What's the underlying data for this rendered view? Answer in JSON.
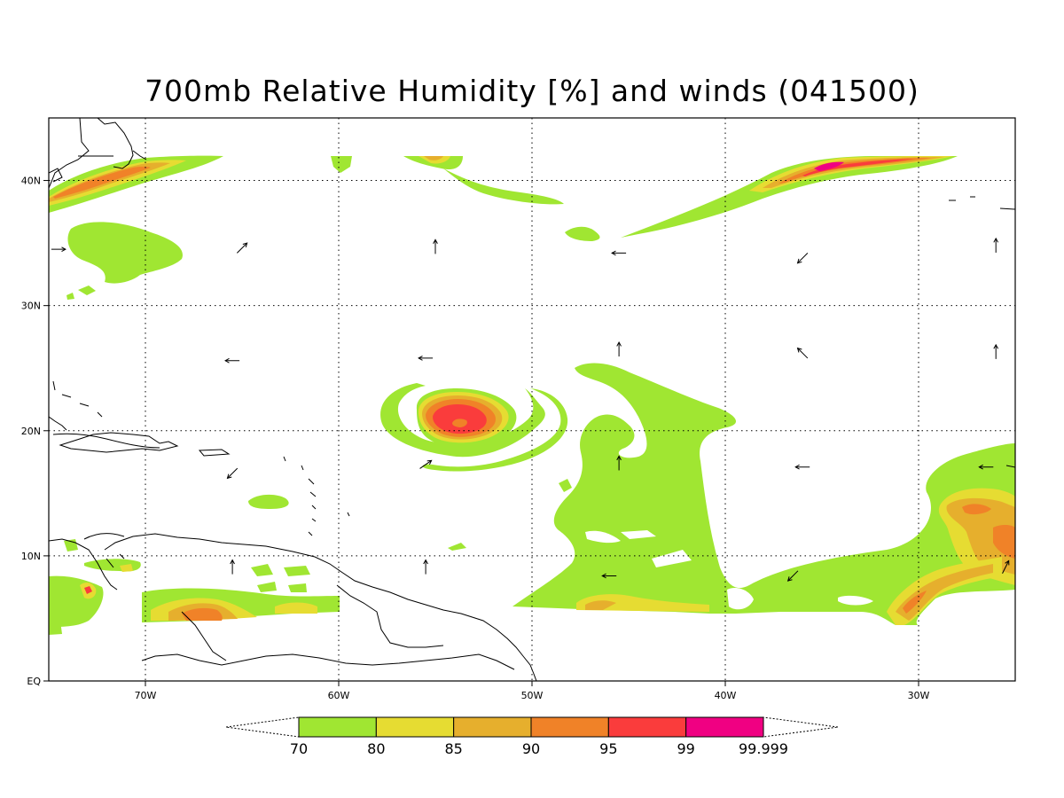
{
  "title": "700mb Relative Humidity [%] and winds (041500)",
  "map": {
    "lon_range": [
      -75,
      -25
    ],
    "lat_range": [
      0,
      45
    ],
    "x_ticks": [
      {
        "lon": -70,
        "label": "70W"
      },
      {
        "lon": -60,
        "label": "60W"
      },
      {
        "lon": -50,
        "label": "50W"
      },
      {
        "lon": -40,
        "label": "40W"
      },
      {
        "lon": -30,
        "label": "30W"
      }
    ],
    "y_ticks": [
      {
        "lat": 0,
        "label": "EQ"
      },
      {
        "lat": 10,
        "label": "10N"
      },
      {
        "lat": 20,
        "label": "20N"
      },
      {
        "lat": 30,
        "label": "30N"
      },
      {
        "lat": 40,
        "label": "40N"
      }
    ],
    "grid": "dotted"
  },
  "colorbar": {
    "levels": [
      "70",
      "80",
      "85",
      "90",
      "95",
      "99",
      "99.999"
    ],
    "colors": [
      "#a0e632",
      "#e6dc32",
      "#e6af2d",
      "#f08228",
      "#fa3c3c",
      "#f00082"
    ]
  },
  "colors": {
    "rh70": "#a0e632",
    "rh80": "#e6dc32",
    "rh85": "#e6af2d",
    "rh90": "#f08228",
    "rh95": "#fa3c3c",
    "rh99": "#f00082"
  },
  "winds": [
    {
      "lon": -74.5,
      "lat": 34.5,
      "u": 1,
      "v": 0
    },
    {
      "lon": -65,
      "lat": 34.6,
      "u": 1,
      "v": 1
    },
    {
      "lon": -55,
      "lat": 34.7,
      "u": 0,
      "v": 1
    },
    {
      "lon": -45.5,
      "lat": 34.2,
      "u": -1,
      "v": 0
    },
    {
      "lon": -36,
      "lat": 33.8,
      "u": -1,
      "v": -1
    },
    {
      "lon": -26,
      "lat": 34.8,
      "u": 0,
      "v": 1
    },
    {
      "lon": -65.5,
      "lat": 25.6,
      "u": -1,
      "v": 0
    },
    {
      "lon": -55.5,
      "lat": 25.8,
      "u": -1,
      "v": 0
    },
    {
      "lon": -45.5,
      "lat": 26.5,
      "u": 0,
      "v": 1
    },
    {
      "lon": -36,
      "lat": 26.2,
      "u": -1,
      "v": 1
    },
    {
      "lon": -26,
      "lat": 26.3,
      "u": 0,
      "v": 1
    },
    {
      "lon": -65.5,
      "lat": 16.6,
      "u": -1,
      "v": -1
    },
    {
      "lon": -55.5,
      "lat": 17.3,
      "u": 1,
      "v": 0.7
    },
    {
      "lon": -45.5,
      "lat": 17.4,
      "u": 0,
      "v": 1
    },
    {
      "lon": -36,
      "lat": 17.1,
      "u": -1,
      "v": 0
    },
    {
      "lon": -26.5,
      "lat": 17.1,
      "u": -1,
      "v": 0
    },
    {
      "lon": -65.5,
      "lat": 9.1,
      "u": 0,
      "v": 1
    },
    {
      "lon": -55.5,
      "lat": 9.1,
      "u": 0,
      "v": 1
    },
    {
      "lon": -46,
      "lat": 8.4,
      "u": -1,
      "v": 0
    },
    {
      "lon": -36.5,
      "lat": 8.4,
      "u": -1,
      "v": -1
    },
    {
      "lon": -25.5,
      "lat": 9.1,
      "u": 0.5,
      "v": 1
    }
  ]
}
